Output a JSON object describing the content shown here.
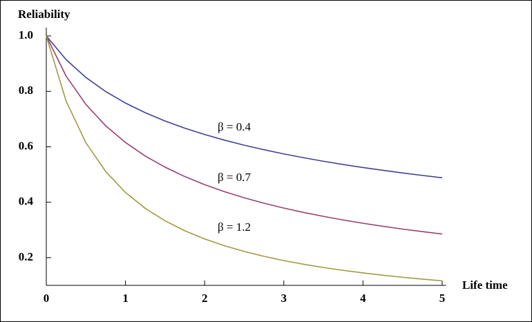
{
  "chart_data": {
    "type": "line",
    "ylabel": "Reliability",
    "xlabel": "Life time",
    "x": [
      0,
      0.25,
      0.5,
      0.75,
      1,
      1.25,
      1.5,
      1.75,
      2,
      2.25,
      2.5,
      2.75,
      3,
      3.25,
      3.5,
      3.75,
      4,
      4.25,
      4.5,
      4.75,
      5
    ],
    "series": [
      {
        "name": "β = 0.4",
        "color": "#40409a",
        "values": [
          1,
          0.9146,
          0.8503,
          0.7994,
          0.7579,
          0.723,
          0.6931,
          0.6672,
          0.6444,
          0.6241,
          0.6059,
          0.5894,
          0.5743,
          0.5606,
          0.5479,
          0.5362,
          0.5253,
          0.5152,
          0.5057,
          0.4967,
          0.4884
        ]
      },
      {
        "name": "β = 0.7",
        "color": "#9a4070",
        "values": [
          1,
          0.8554,
          0.7529,
          0.6759,
          0.6156,
          0.5668,
          0.5266,
          0.4926,
          0.4634,
          0.4382,
          0.4161,
          0.3964,
          0.3789,
          0.3632,
          0.349,
          0.336,
          0.3241,
          0.3133,
          0.3032,
          0.2939,
          0.2853
        ]
      },
      {
        "name": "β = 1.2",
        "color": "#a09a40",
        "values": [
          1,
          0.7651,
          0.6147,
          0.5109,
          0.4353,
          0.3779,
          0.333,
          0.297,
          0.2676,
          0.2431,
          0.2224,
          0.2047,
          0.1895,
          0.1762,
          0.1645,
          0.1542,
          0.145,
          0.1367,
          0.1293,
          0.1226,
          0.1165
        ]
      }
    ],
    "xlim": [
      0,
      5.05
    ],
    "ylim": [
      0.1,
      1.03
    ],
    "xticks": [
      0,
      1,
      2,
      3,
      4,
      5
    ],
    "yticks": [
      0.2,
      0.4,
      0.6,
      {
        "value": 0.8,
        "label": "0.8"
      },
      {
        "value": 1,
        "label": "1.0"
      }
    ],
    "grid": false
  }
}
